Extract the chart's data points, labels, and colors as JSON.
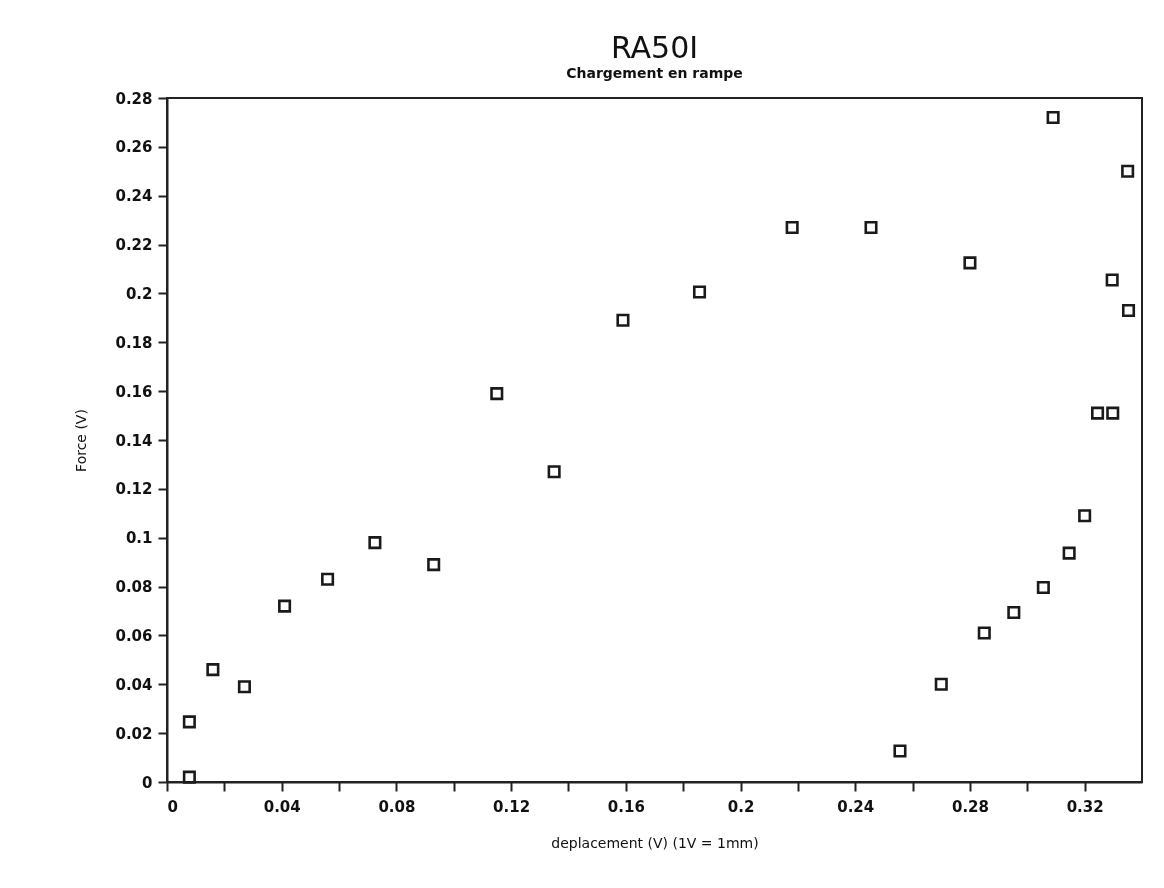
{
  "chart_data": {
    "type": "scatter",
    "title": "RA50I",
    "subtitle": "Chargement en rampe",
    "xlabel": "deplacement (V)        (1V = 1mm)",
    "ylabel": "Force (V)",
    "x": [
      0.0078,
      0.0078,
      0.016,
      0.027,
      0.041,
      0.056,
      0.0725,
      0.093,
      0.115,
      0.135,
      0.159,
      0.1857,
      0.218,
      0.2455,
      0.28,
      0.309,
      0.335,
      0.3296,
      0.3353,
      0.3245,
      0.3298,
      0.32,
      0.3146,
      0.3056,
      0.2953,
      0.285,
      0.27,
      0.2556
    ],
    "series": [
      {
        "color": "#1a1a1a",
        "values": [
          0.0246,
          0.002,
          0.046,
          0.039,
          0.072,
          0.083,
          0.098,
          0.089,
          0.159,
          0.127,
          0.189,
          0.2006,
          0.227,
          0.227,
          0.2125,
          0.272,
          0.25,
          0.2055,
          0.193,
          0.151,
          0.151,
          0.109,
          0.0937,
          0.0796,
          0.0694,
          0.061,
          0.04,
          0.0127
        ]
      }
    ],
    "xlim": [
      0,
      0.34
    ],
    "xticks": [
      0,
      {
        "value": 0.02,
        "label": null
      },
      0.04,
      {
        "value": 0.06,
        "label": null
      },
      0.08,
      {
        "value": 0.1,
        "label": null
      },
      0.12,
      {
        "value": 0.14,
        "label": null
      },
      0.16,
      {
        "value": 0.18,
        "label": null
      },
      0.2,
      {
        "value": 0.22,
        "label": null
      },
      0.24,
      {
        "value": 0.26,
        "label": null
      },
      0.28,
      {
        "value": 0.3,
        "label": null
      },
      0.32
    ],
    "ylim": [
      0,
      0.28
    ],
    "yticks": [
      0,
      0.02,
      0.04,
      0.06,
      0.08,
      0.1,
      0.12,
      0.14,
      0.16,
      0.18,
      0.2,
      0.22,
      0.24,
      0.26,
      0.28
    ],
    "marker": "square",
    "grid": false
  }
}
